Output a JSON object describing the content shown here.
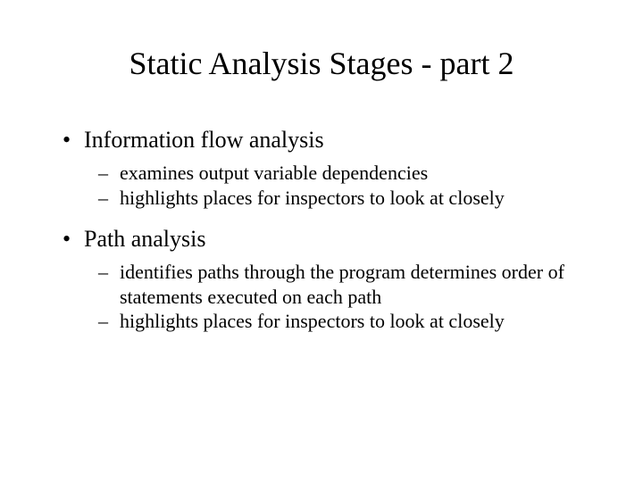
{
  "slide": {
    "title": "Static Analysis Stages - part 2",
    "bullets": [
      {
        "text": "Information flow analysis",
        "children": [
          "examines output variable dependencies",
          "highlights places for inspectors to look at closely"
        ]
      },
      {
        "text": "Path analysis",
        "children": [
          "identifies paths through the program determines order of statements executed on each path",
          "highlights places for inspectors to look at closely"
        ]
      }
    ]
  },
  "style": {
    "background_color": "#ffffff",
    "text_color": "#000000",
    "title_fontsize": 36,
    "l1_fontsize": 26,
    "l2_fontsize": 22,
    "font_family": "Times New Roman"
  }
}
